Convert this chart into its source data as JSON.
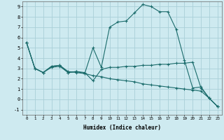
{
  "xlabel": "Humidex (Indice chaleur)",
  "bg_color": "#ceeaf0",
  "grid_color": "#aacfd8",
  "line_color": "#1a6b6b",
  "xlim": [
    -0.5,
    23.5
  ],
  "ylim": [
    -1.5,
    9.5
  ],
  "xticks": [
    0,
    1,
    2,
    3,
    4,
    5,
    6,
    7,
    8,
    9,
    10,
    11,
    12,
    13,
    14,
    15,
    16,
    17,
    18,
    19,
    20,
    21,
    22,
    23
  ],
  "yticks": [
    -1,
    0,
    1,
    2,
    3,
    4,
    5,
    6,
    7,
    8,
    9
  ],
  "series": [
    {
      "x": [
        0,
        1,
        2,
        3,
        4,
        5,
        6,
        7,
        8,
        9,
        10,
        11,
        12,
        13,
        14,
        15,
        16,
        17,
        18,
        19,
        20,
        21,
        22,
        23
      ],
      "y": [
        5.5,
        3.0,
        2.6,
        3.2,
        3.3,
        2.6,
        2.7,
        2.5,
        5.0,
        3.1,
        7.0,
        7.5,
        7.6,
        8.4,
        9.2,
        9.0,
        8.5,
        8.5,
        6.8,
        3.8,
        1.1,
        1.2,
        0.1,
        -0.7
      ]
    },
    {
      "x": [
        0,
        1,
        2,
        3,
        4,
        5,
        6,
        7,
        8,
        9,
        10,
        11,
        12,
        13,
        14,
        15,
        16,
        17,
        18,
        19,
        20,
        21,
        22,
        23
      ],
      "y": [
        5.5,
        3.0,
        2.6,
        3.1,
        3.2,
        2.6,
        2.7,
        2.6,
        1.8,
        2.9,
        3.1,
        3.1,
        3.2,
        3.2,
        3.3,
        3.3,
        3.4,
        3.4,
        3.5,
        3.5,
        3.6,
        1.1,
        0.1,
        -0.7
      ]
    },
    {
      "x": [
        0,
        1,
        2,
        3,
        4,
        5,
        6,
        7,
        8,
        9,
        10,
        11,
        12,
        13,
        14,
        15,
        16,
        17,
        18,
        19,
        20,
        21,
        22,
        23
      ],
      "y": [
        5.5,
        3.0,
        2.6,
        3.2,
        3.3,
        2.7,
        2.6,
        2.5,
        2.3,
        2.2,
        2.0,
        1.9,
        1.8,
        1.7,
        1.5,
        1.4,
        1.3,
        1.2,
        1.1,
        1.0,
        0.9,
        0.8,
        0.1,
        -0.7
      ]
    }
  ]
}
